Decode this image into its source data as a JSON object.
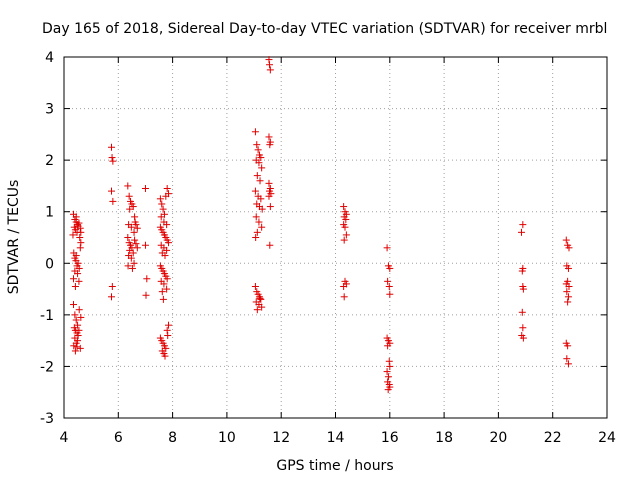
{
  "chart_data": {
    "type": "scatter",
    "title": "Day 165 of 2018, Sidereal Day-to-day VTEC variation (SDTVAR) for receiver mrbl",
    "xlabel": "GPS time / hours",
    "ylabel": "SDTVAR / TECUs",
    "xlim": [
      4,
      24
    ],
    "ylim": [
      -3,
      4
    ],
    "xticks": [
      4,
      6,
      8,
      10,
      12,
      14,
      16,
      18,
      20,
      22,
      24
    ],
    "yticks": [
      -3,
      -2,
      -1,
      0,
      1,
      2,
      3,
      4
    ],
    "grid": true,
    "marker": "+",
    "color": "#e00000",
    "series": [
      {
        "name": "SDTVAR",
        "points": [
          [
            4.35,
            0.95
          ],
          [
            4.4,
            0.85
          ],
          [
            4.45,
            0.8
          ],
          [
            4.5,
            0.75
          ],
          [
            4.38,
            0.7
          ],
          [
            4.42,
            0.65
          ],
          [
            4.48,
            0.6
          ],
          [
            4.52,
            0.72
          ],
          [
            4.55,
            0.78
          ],
          [
            4.6,
            0.68
          ],
          [
            4.33,
            0.55
          ],
          [
            4.45,
            0.9
          ],
          [
            4.58,
            0.5
          ],
          [
            4.62,
            0.6
          ],
          [
            4.36,
            0.2
          ],
          [
            4.4,
            0.1
          ],
          [
            4.44,
            0.05
          ],
          [
            4.48,
            -0.05
          ],
          [
            4.52,
            0.0
          ],
          [
            4.56,
            -0.1
          ],
          [
            4.4,
            -0.15
          ],
          [
            4.5,
            -0.2
          ],
          [
            4.35,
            -0.3
          ],
          [
            4.45,
            0.15
          ],
          [
            4.6,
            0.3
          ],
          [
            4.62,
            0.4
          ],
          [
            4.55,
            -0.35
          ],
          [
            4.42,
            -0.45
          ],
          [
            4.35,
            -0.8
          ],
          [
            4.4,
            -1.0
          ],
          [
            4.45,
            -1.1
          ],
          [
            4.5,
            -1.2
          ],
          [
            4.38,
            -1.25
          ],
          [
            4.42,
            -1.3
          ],
          [
            4.48,
            -1.35
          ],
          [
            4.52,
            -1.4
          ],
          [
            4.4,
            -1.45
          ],
          [
            4.5,
            -1.5
          ],
          [
            4.55,
            -1.3
          ],
          [
            4.45,
            -1.55
          ],
          [
            4.36,
            -1.6
          ],
          [
            4.48,
            -1.62
          ],
          [
            4.6,
            -1.65
          ],
          [
            4.42,
            -1.7
          ],
          [
            4.56,
            -0.9
          ],
          [
            4.62,
            -1.05
          ],
          [
            5.75,
            2.25
          ],
          [
            5.77,
            2.05
          ],
          [
            5.8,
            1.98
          ],
          [
            5.75,
            1.4
          ],
          [
            5.8,
            1.2
          ],
          [
            5.78,
            -0.45
          ],
          [
            5.75,
            -0.65
          ],
          [
            6.35,
            1.5
          ],
          [
            6.4,
            1.3
          ],
          [
            6.45,
            1.2
          ],
          [
            6.5,
            1.15
          ],
          [
            6.42,
            1.05
          ],
          [
            6.55,
            1.1
          ],
          [
            6.6,
            0.9
          ],
          [
            6.62,
            0.8
          ],
          [
            6.38,
            0.75
          ],
          [
            6.48,
            0.7
          ],
          [
            6.58,
            0.6
          ],
          [
            6.65,
            0.75
          ],
          [
            6.7,
            0.68
          ],
          [
            6.35,
            0.5
          ],
          [
            6.4,
            0.4
          ],
          [
            6.45,
            0.35
          ],
          [
            6.5,
            0.3
          ],
          [
            6.42,
            0.25
          ],
          [
            6.55,
            0.2
          ],
          [
            6.6,
            0.45
          ],
          [
            6.38,
            0.15
          ],
          [
            6.48,
            0.1
          ],
          [
            6.58,
            0.0
          ],
          [
            6.65,
            0.38
          ],
          [
            6.7,
            0.3
          ],
          [
            6.52,
            -0.1
          ],
          [
            6.36,
            -0.05
          ],
          [
            7.0,
            1.45
          ],
          [
            7.0,
            0.35
          ],
          [
            7.05,
            -0.3
          ],
          [
            7.02,
            -0.62
          ],
          [
            7.55,
            1.25
          ],
          [
            7.6,
            1.15
          ],
          [
            7.65,
            1.05
          ],
          [
            7.7,
            0.95
          ],
          [
            7.75,
            1.3
          ],
          [
            7.8,
            1.45
          ],
          [
            7.85,
            1.35
          ],
          [
            7.58,
            0.9
          ],
          [
            7.68,
            0.8
          ],
          [
            7.78,
            0.75
          ],
          [
            7.55,
            0.7
          ],
          [
            7.6,
            0.65
          ],
          [
            7.65,
            0.6
          ],
          [
            7.7,
            0.55
          ],
          [
            7.75,
            0.5
          ],
          [
            7.8,
            0.45
          ],
          [
            7.85,
            0.4
          ],
          [
            7.58,
            0.35
          ],
          [
            7.68,
            0.3
          ],
          [
            7.78,
            0.25
          ],
          [
            7.62,
            0.2
          ],
          [
            7.72,
            0.15
          ],
          [
            7.55,
            -0.05
          ],
          [
            7.6,
            -0.1
          ],
          [
            7.65,
            -0.15
          ],
          [
            7.7,
            -0.2
          ],
          [
            7.75,
            -0.25
          ],
          [
            7.8,
            -0.3
          ],
          [
            7.58,
            -0.35
          ],
          [
            7.68,
            -0.4
          ],
          [
            7.62,
            -0.55
          ],
          [
            7.66,
            -0.7
          ],
          [
            7.78,
            -0.5
          ],
          [
            7.55,
            -1.45
          ],
          [
            7.6,
            -1.5
          ],
          [
            7.65,
            -1.55
          ],
          [
            7.7,
            -1.6
          ],
          [
            7.75,
            -1.65
          ],
          [
            7.62,
            -1.7
          ],
          [
            7.68,
            -1.75
          ],
          [
            7.72,
            -1.8
          ],
          [
            7.8,
            -1.3
          ],
          [
            7.85,
            -1.2
          ],
          [
            7.82,
            -1.4
          ],
          [
            11.05,
            2.55
          ],
          [
            11.1,
            2.3
          ],
          [
            11.15,
            2.2
          ],
          [
            11.2,
            2.1
          ],
          [
            11.25,
            2.05
          ],
          [
            11.08,
            2.0
          ],
          [
            11.18,
            1.95
          ],
          [
            11.28,
            1.85
          ],
          [
            11.12,
            1.7
          ],
          [
            11.22,
            1.6
          ],
          [
            11.05,
            1.4
          ],
          [
            11.15,
            1.3
          ],
          [
            11.25,
            1.25
          ],
          [
            11.1,
            1.15
          ],
          [
            11.2,
            1.1
          ],
          [
            11.3,
            1.05
          ],
          [
            11.08,
            0.9
          ],
          [
            11.18,
            0.8
          ],
          [
            11.28,
            0.7
          ],
          [
            11.12,
            0.6
          ],
          [
            11.06,
            0.5
          ],
          [
            11.05,
            -0.45
          ],
          [
            11.1,
            -0.55
          ],
          [
            11.15,
            -0.6
          ],
          [
            11.2,
            -0.65
          ],
          [
            11.25,
            -0.7
          ],
          [
            11.08,
            -0.75
          ],
          [
            11.18,
            -0.8
          ],
          [
            11.28,
            -0.85
          ],
          [
            11.12,
            -0.9
          ],
          [
            11.22,
            -0.68
          ],
          [
            11.55,
            3.95
          ],
          [
            11.57,
            3.85
          ],
          [
            11.6,
            3.75
          ],
          [
            11.55,
            2.45
          ],
          [
            11.6,
            2.35
          ],
          [
            11.58,
            2.3
          ],
          [
            11.55,
            1.55
          ],
          [
            11.6,
            1.45
          ],
          [
            11.57,
            1.4
          ],
          [
            11.62,
            1.35
          ],
          [
            11.55,
            1.3
          ],
          [
            11.6,
            1.1
          ],
          [
            11.58,
            0.35
          ],
          [
            14.3,
            1.1
          ],
          [
            14.35,
            1.0
          ],
          [
            14.4,
            0.95
          ],
          [
            14.32,
            0.9
          ],
          [
            14.38,
            0.85
          ],
          [
            14.3,
            0.75
          ],
          [
            14.35,
            0.7
          ],
          [
            14.4,
            0.55
          ],
          [
            14.32,
            0.45
          ],
          [
            14.35,
            -0.35
          ],
          [
            14.3,
            -0.45
          ],
          [
            14.4,
            -0.4
          ],
          [
            14.32,
            -0.65
          ],
          [
            15.9,
            0.3
          ],
          [
            15.95,
            -0.05
          ],
          [
            16.0,
            -0.1
          ],
          [
            15.92,
            -0.35
          ],
          [
            15.98,
            -0.45
          ],
          [
            16.0,
            -0.6
          ],
          [
            15.9,
            -1.45
          ],
          [
            15.95,
            -1.5
          ],
          [
            16.0,
            -1.55
          ],
          [
            15.92,
            -1.6
          ],
          [
            15.98,
            -1.9
          ],
          [
            16.0,
            -2.0
          ],
          [
            15.9,
            -2.1
          ],
          [
            15.95,
            -2.2
          ],
          [
            15.92,
            -2.3
          ],
          [
            15.98,
            -2.35
          ],
          [
            16.0,
            -2.4
          ],
          [
            15.94,
            -2.45
          ],
          [
            20.9,
            0.75
          ],
          [
            20.85,
            0.6
          ],
          [
            20.9,
            -0.1
          ],
          [
            20.88,
            -0.15
          ],
          [
            20.9,
            -0.45
          ],
          [
            20.92,
            -0.5
          ],
          [
            20.88,
            -0.95
          ],
          [
            20.9,
            -1.25
          ],
          [
            20.86,
            -1.4
          ],
          [
            20.92,
            -1.45
          ],
          [
            22.5,
            0.45
          ],
          [
            22.55,
            0.35
          ],
          [
            22.6,
            0.3
          ],
          [
            22.52,
            -0.05
          ],
          [
            22.58,
            -0.1
          ],
          [
            22.55,
            -0.35
          ],
          [
            22.5,
            -0.4
          ],
          [
            22.6,
            -0.45
          ],
          [
            22.52,
            -0.55
          ],
          [
            22.58,
            -0.65
          ],
          [
            22.55,
            -0.75
          ],
          [
            22.5,
            -1.55
          ],
          [
            22.55,
            -1.6
          ],
          [
            22.52,
            -1.85
          ],
          [
            22.58,
            -1.95
          ]
        ]
      }
    ]
  }
}
